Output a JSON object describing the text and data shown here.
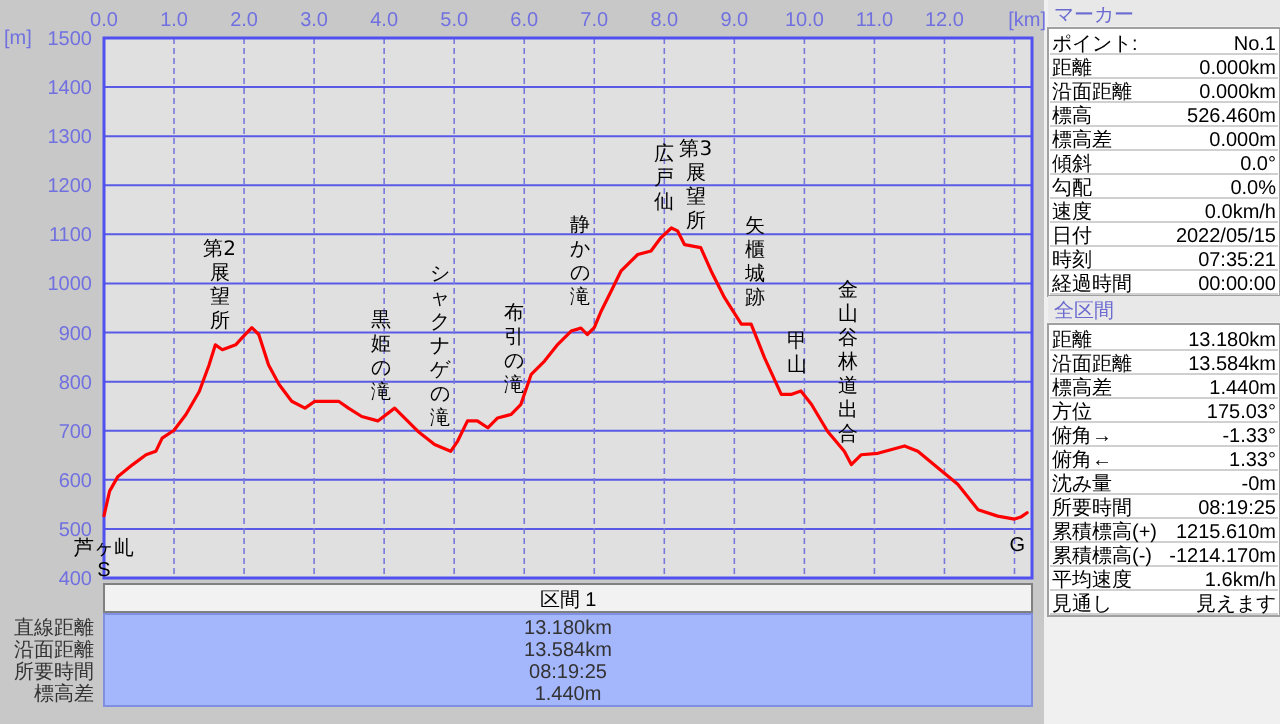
{
  "chart_data": [
    {
      "type": "line",
      "xlabel": "[km]",
      "ylabel": "[m]",
      "series": [
        {
          "color": "#ff0000",
          "x": [
            0,
            0.08,
            0.2,
            0.41,
            0.6,
            0.74,
            0.83,
            1.0,
            1.17,
            1.36,
            1.5,
            1.59,
            1.69,
            1.88,
            1.97,
            2.11,
            2.21,
            2.35,
            2.5,
            2.68,
            2.87,
            3.01,
            3.35,
            3.49,
            3.68,
            3.91,
            4.15,
            4.29,
            4.48,
            4.72,
            4.95,
            5.05,
            5.19,
            5.33,
            5.48,
            5.62,
            5.81,
            5.95,
            6.1,
            6.29,
            6.48,
            6.67,
            6.81,
            6.9,
            7.0,
            7.1,
            7.24,
            7.38,
            7.62,
            7.81,
            7.95,
            8.1,
            8.19,
            8.29,
            8.52,
            8.67,
            8.86,
            9.1,
            9.24,
            9.43,
            9.67,
            9.81,
            9.95,
            10.1,
            10.33,
            10.57,
            10.67,
            10.81,
            11.05,
            11.43,
            11.62,
            11.9,
            12.19,
            12.48,
            12.76,
            13.0,
            13.1,
            13.18
          ],
          "values": [
            527,
            577,
            607,
            631,
            651,
            658,
            685,
            701,
            733,
            780,
            834,
            875,
            865,
            875,
            889,
            910,
            896,
            834,
            794,
            760,
            746,
            760,
            760,
            746,
            729,
            720,
            746,
            726,
            699,
            672,
            658,
            679,
            720,
            720,
            706,
            726,
            733,
            753,
            815,
            842,
            876,
            903,
            909,
            896,
            910,
            944,
            984,
            1025,
            1059,
            1066,
            1093,
            1113,
            1107,
            1079,
            1073,
            1025,
            971,
            917,
            917,
            849,
            774,
            774,
            781,
            754,
            699,
            658,
            631,
            651,
            654,
            669,
            658,
            625,
            591,
            539,
            526,
            520,
            525,
            533
          ]
        }
      ],
      "xlim": [
        0,
        13.25
      ],
      "ylim": [
        400,
        1500
      ],
      "xticks": [
        {
          "value": 0,
          "label": "0.0"
        },
        {
          "value": 1,
          "label": "1.0"
        },
        {
          "value": 2,
          "label": "2.0"
        },
        {
          "value": 3,
          "label": "3.0"
        },
        {
          "value": 4,
          "label": "4.0"
        },
        {
          "value": 5,
          "label": "5.0"
        },
        {
          "value": 6,
          "label": "6.0"
        },
        {
          "value": 7,
          "label": "7.0"
        },
        {
          "value": 8,
          "label": "8.0"
        },
        {
          "value": 9,
          "label": "9.0"
        },
        {
          "value": 10,
          "label": "10.0"
        },
        {
          "value": 11,
          "label": "11.0"
        },
        {
          "value": 12,
          "label": "12.0"
        },
        {
          "value": 13,
          "label": null
        }
      ],
      "yticks": [
        400,
        500,
        600,
        700,
        800,
        900,
        1000,
        1100,
        1200,
        1300,
        1400,
        1500
      ],
      "grid": true,
      "marker": "none",
      "line_style": "solid",
      "annotations": [
        {
          "text": "芦ヶ乢",
          "x": 0,
          "y": 527
        },
        {
          "text": "S",
          "x": 0,
          "y": 527
        },
        {
          "text": "第2展望所",
          "x": 1.65,
          "y": 870
        },
        {
          "text": "黒姫の滝",
          "x": 3.95,
          "y": 725
        },
        {
          "text": "シャクナゲの滝",
          "x": 4.8,
          "y": 672
        },
        {
          "text": "布引の滝",
          "x": 5.85,
          "y": 740
        },
        {
          "text": "静かの滝",
          "x": 6.8,
          "y": 920
        },
        {
          "text": "広戸仙",
          "x": 8.0,
          "y": 1113
        },
        {
          "text": "第3展望所",
          "x": 8.45,
          "y": 1075
        },
        {
          "text": "矢櫃城跡",
          "x": 9.3,
          "y": 917
        },
        {
          "text": "甲山",
          "x": 9.9,
          "y": 781
        },
        {
          "text": "金山谷林道出合",
          "x": 10.62,
          "y": 640
        },
        {
          "text": "G",
          "x": 13.18,
          "y": 533
        }
      ]
    },
    {
      "type": "other",
      "title": "マーカー",
      "annotations": [
        "ポイント:",
        "No.1",
        "距離",
        "0.000km",
        "沿面距離",
        "0.000km",
        "標高",
        "526.460m",
        "標高差",
        "0.000m",
        "傾斜",
        "0.0°",
        "勾配",
        "0.0%",
        "速度",
        "0.0km/h",
        "日付",
        "2022/05/15",
        "時刻",
        "07:35:21",
        "経過時間",
        "00:00:00"
      ]
    },
    {
      "type": "other",
      "title": "全区間",
      "annotations": [
        "距離",
        "13.180km",
        "沿面距離",
        "13.584km",
        "標高差",
        "1.440m",
        "方位",
        "175.03°",
        "俯角→",
        "-1.33°",
        "俯角←",
        "1.33°",
        "沈み量",
        "-0m",
        "所要時間",
        "08:19:25",
        "累積標高(+)",
        "1215.610m",
        "累積標高(-)",
        "-1214.170m",
        "平均速度",
        "1.6km/h",
        "見通し",
        "見えます"
      ]
    },
    {
      "type": "other",
      "title": "区間 1",
      "annotations": [
        "直線距離",
        "13.180km",
        "沿面距離",
        "13.584km",
        "所要時間",
        "08:19:25",
        "標高差",
        "1.440m"
      ]
    }
  ]
}
